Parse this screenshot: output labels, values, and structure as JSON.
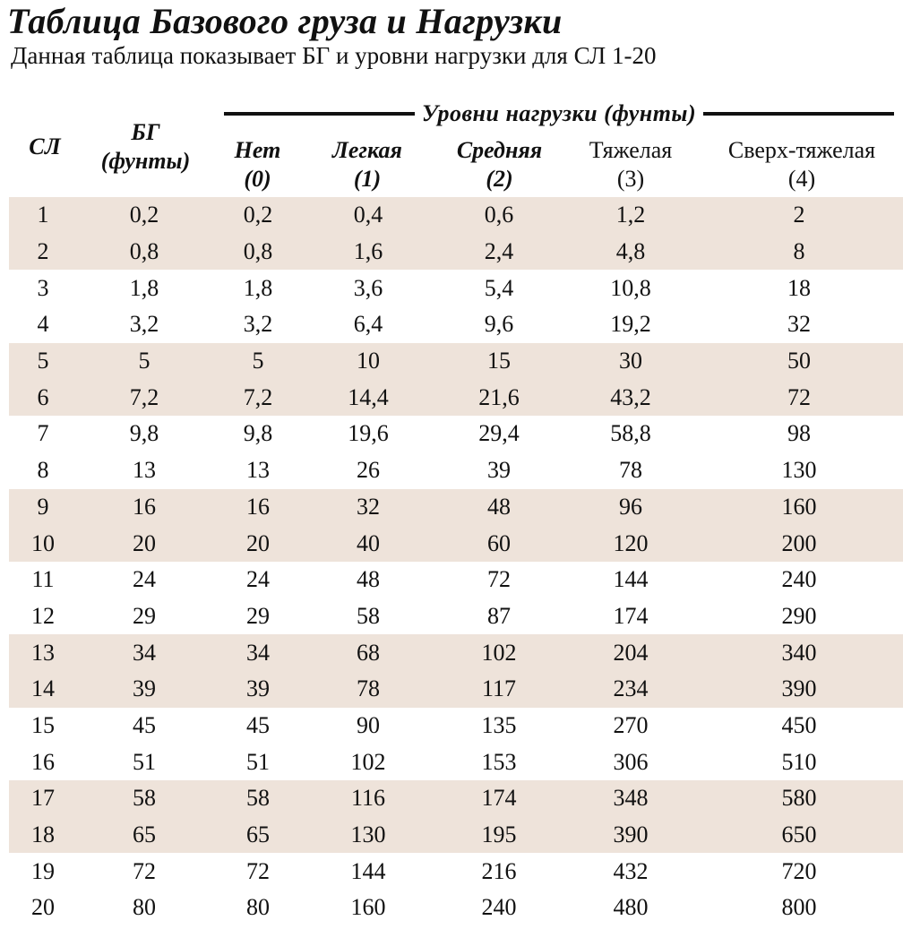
{
  "title": "Таблица Базового груза и Нагрузки",
  "subtitle": "Данная таблица показывает БГ и уровни нагрузки для СЛ 1-20",
  "group_header": "Уровни нагрузки (фунты)",
  "headers": {
    "sl": "СЛ",
    "bg": [
      "БГ",
      "(фунты)"
    ],
    "none": [
      "Нет",
      "(0)"
    ],
    "light": [
      "Легкая",
      "(1)"
    ],
    "medium": [
      "Средняя",
      "(2)"
    ],
    "heavy": [
      "Тяжелая",
      "(3)"
    ],
    "extra_heavy": [
      "Сверх-тяжелая",
      "(4)"
    ]
  },
  "rows": [
    [
      "1",
      "0,2",
      "0,2",
      "0,4",
      "0,6",
      "1,2",
      "2"
    ],
    [
      "2",
      "0,8",
      "0,8",
      "1,6",
      "2,4",
      "4,8",
      "8"
    ],
    [
      "3",
      "1,8",
      "1,8",
      "3,6",
      "5,4",
      "10,8",
      "18"
    ],
    [
      "4",
      "3,2",
      "3,2",
      "6,4",
      "9,6",
      "19,2",
      "32"
    ],
    [
      "5",
      "5",
      "5",
      "10",
      "15",
      "30",
      "50"
    ],
    [
      "6",
      "7,2",
      "7,2",
      "14,4",
      "21,6",
      "43,2",
      "72"
    ],
    [
      "7",
      "9,8",
      "9,8",
      "19,6",
      "29,4",
      "58,8",
      "98"
    ],
    [
      "8",
      "13",
      "13",
      "26",
      "39",
      "78",
      "130"
    ],
    [
      "9",
      "16",
      "16",
      "32",
      "48",
      "96",
      "160"
    ],
    [
      "10",
      "20",
      "20",
      "40",
      "60",
      "120",
      "200"
    ],
    [
      "11",
      "24",
      "24",
      "48",
      "72",
      "144",
      "240"
    ],
    [
      "12",
      "29",
      "29",
      "58",
      "87",
      "174",
      "290"
    ],
    [
      "13",
      "34",
      "34",
      "68",
      "102",
      "204",
      "340"
    ],
    [
      "14",
      "39",
      "39",
      "78",
      "117",
      "234",
      "390"
    ],
    [
      "15",
      "45",
      "45",
      "90",
      "135",
      "270",
      "450"
    ],
    [
      "16",
      "51",
      "51",
      "102",
      "153",
      "306",
      "510"
    ],
    [
      "17",
      "58",
      "58",
      "116",
      "174",
      "348",
      "580"
    ],
    [
      "18",
      "65",
      "65",
      "130",
      "195",
      "390",
      "650"
    ],
    [
      "19",
      "72",
      "72",
      "144",
      "216",
      "432",
      "720"
    ],
    [
      "20",
      "80",
      "80",
      "160",
      "240",
      "480",
      "800"
    ]
  ],
  "colors": {
    "band": "#eee3da",
    "text": "#111111"
  }
}
